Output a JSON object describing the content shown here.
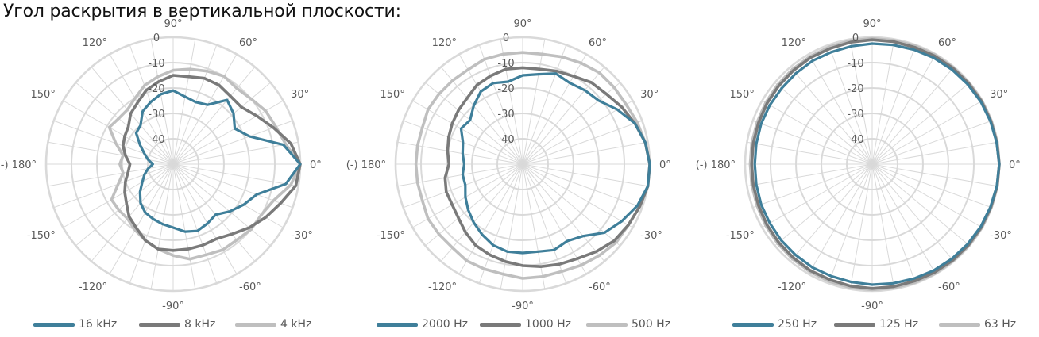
{
  "heading": "Угол раскрытия в вертикальной плоскости:",
  "colors": {
    "grid": "#d9d9d9",
    "text": "#595959"
  },
  "chart_data": [
    {
      "type": "polar",
      "angle_labels": [
        {
          "deg": 0,
          "label": "0°"
        },
        {
          "deg": 30,
          "label": "30°"
        },
        {
          "deg": 60,
          "label": "60°"
        },
        {
          "deg": 90,
          "label": "90°"
        },
        {
          "deg": 120,
          "label": "120°"
        },
        {
          "deg": 150,
          "label": "150°"
        },
        {
          "deg": 180,
          "label": "(-) 180°"
        },
        {
          "deg": 210,
          "label": "-150°"
        },
        {
          "deg": 240,
          "label": "-120°"
        },
        {
          "deg": 270,
          "label": "-90°"
        },
        {
          "deg": 300,
          "label": "-60°"
        },
        {
          "deg": 330,
          "label": "-30°"
        }
      ],
      "radial_ticks": [
        "0",
        "-10",
        "-20",
        "-30",
        "-40"
      ],
      "rlim": [
        -50,
        0
      ],
      "angle_step": 10,
      "series": [
        {
          "name": "16 kHz",
          "color": "#3f7f9a",
          "width": 3.2,
          "angles": [
            0,
            10,
            20,
            30,
            40,
            50,
            60,
            70,
            80,
            90,
            100,
            110,
            120,
            130,
            140,
            150,
            160,
            170,
            180,
            190,
            200,
            210,
            220,
            230,
            240,
            250,
            260,
            270,
            280,
            290,
            300,
            310,
            320,
            330,
            340,
            350
          ],
          "values": [
            0,
            -6,
            -18,
            -22,
            -19,
            -17,
            -23,
            -24,
            -23,
            -21,
            -22,
            -24,
            -26,
            -30,
            -31,
            -35,
            -38,
            -40,
            -42,
            -40,
            -38,
            -36,
            -33,
            -30,
            -28,
            -27,
            -26,
            -25,
            -23,
            -22,
            -23,
            -24,
            -21,
            -18,
            -15,
            -5
          ]
        },
        {
          "name": "8 kHz",
          "color": "#7a7a7a",
          "width": 3.6,
          "angles": [
            0,
            10,
            20,
            30,
            40,
            50,
            60,
            70,
            80,
            90,
            100,
            110,
            120,
            130,
            140,
            150,
            160,
            170,
            180,
            190,
            200,
            210,
            220,
            230,
            240,
            250,
            260,
            270,
            280,
            290,
            300,
            310,
            320,
            330,
            340,
            350
          ],
          "values": [
            0,
            -3,
            -8,
            -12,
            -15,
            -15,
            -14,
            -14,
            -15,
            -15,
            -17,
            -19,
            -22,
            -24,
            -27,
            -28,
            -29,
            -31,
            -33,
            -32,
            -30,
            -28,
            -26,
            -23,
            -21,
            -18,
            -16,
            -16,
            -16,
            -16,
            -16,
            -14,
            -11,
            -8,
            -5,
            -1
          ]
        },
        {
          "name": "4 kHz",
          "color": "#bfbfbf",
          "width": 3.6,
          "angles": [
            0,
            10,
            20,
            30,
            40,
            50,
            60,
            70,
            80,
            90,
            100,
            110,
            120,
            130,
            140,
            150,
            160,
            170,
            180,
            190,
            200,
            210,
            220,
            230,
            240,
            250,
            260,
            270,
            280,
            290,
            300,
            310,
            320,
            330,
            340,
            350
          ],
          "values": [
            0,
            -5,
            -7,
            -8,
            -10,
            -11,
            -10,
            -11,
            -12,
            -13,
            -15,
            -17,
            -20,
            -22,
            -22,
            -21,
            -26,
            -30,
            -29,
            -30,
            -27,
            -22,
            -22,
            -22,
            -20,
            -18,
            -16,
            -14,
            -12,
            -12,
            -11,
            -11,
            -10,
            -10,
            -8,
            -3
          ]
        }
      ]
    },
    {
      "type": "polar",
      "angle_labels": [
        {
          "deg": 0,
          "label": "0°"
        },
        {
          "deg": 30,
          "label": "30°"
        },
        {
          "deg": 60,
          "label": "60°"
        },
        {
          "deg": 90,
          "label": "90°"
        },
        {
          "deg": 120,
          "label": "120°"
        },
        {
          "deg": 150,
          "label": "150°"
        },
        {
          "deg": 180,
          "label": "(-) 180°"
        },
        {
          "deg": 210,
          "label": "-150°"
        },
        {
          "deg": 240,
          "label": "-120°"
        },
        {
          "deg": 270,
          "label": "-90°"
        },
        {
          "deg": 300,
          "label": "-60°"
        },
        {
          "deg": 330,
          "label": "-30°"
        }
      ],
      "radial_ticks": [
        "0",
        "-10",
        "-20",
        "-30",
        "-40"
      ],
      "rlim": [
        -50,
        0
      ],
      "angle_step": 10,
      "series": [
        {
          "name": "2000 Hz",
          "color": "#3f7f9a",
          "width": 3.2,
          "angles": [
            0,
            10,
            20,
            30,
            40,
            50,
            60,
            70,
            80,
            90,
            100,
            110,
            120,
            130,
            140,
            150,
            160,
            170,
            180,
            190,
            200,
            210,
            220,
            230,
            240,
            250,
            260,
            270,
            280,
            290,
            300,
            310,
            320,
            330,
            340,
            350
          ],
          "values": [
            0,
            -1,
            -3,
            -7,
            -11,
            -12,
            -13,
            -12,
            -14,
            -15,
            -17,
            -16,
            -17,
            -20,
            -23,
            -22,
            -25,
            -26,
            -27,
            -26,
            -26,
            -24,
            -22,
            -20,
            -18,
            -16,
            -15,
            -15,
            -15,
            -14,
            -15,
            -13,
            -8,
            -5,
            -2,
            0
          ]
        },
        {
          "name": "1000 Hz",
          "color": "#7a7a7a",
          "width": 3.6,
          "angles": [
            0,
            10,
            20,
            30,
            40,
            50,
            60,
            70,
            80,
            90,
            100,
            110,
            120,
            130,
            140,
            150,
            160,
            170,
            180,
            190,
            200,
            210,
            220,
            230,
            240,
            250,
            260,
            270,
            280,
            290,
            300,
            310,
            320,
            330,
            340,
            350
          ],
          "values": [
            0,
            -1,
            -3,
            -5,
            -7,
            -8,
            -10,
            -11,
            -12,
            -12,
            -12,
            -13,
            -14,
            -16,
            -17,
            -18,
            -19,
            -20,
            -21,
            -19,
            -18,
            -18,
            -17,
            -15,
            -13,
            -12,
            -11,
            -10,
            -9,
            -8,
            -7,
            -5,
            -3,
            -2,
            -1,
            0
          ]
        },
        {
          "name": "500 Hz",
          "color": "#bfbfbf",
          "width": 3.6,
          "angles": [
            0,
            10,
            20,
            30,
            40,
            50,
            60,
            70,
            80,
            90,
            100,
            110,
            120,
            130,
            140,
            150,
            160,
            170,
            180,
            190,
            200,
            210,
            220,
            230,
            240,
            250,
            260,
            270,
            280,
            290,
            300,
            310,
            320,
            330,
            340,
            350
          ],
          "values": [
            0,
            -1,
            -2,
            -3,
            -3,
            -3,
            -4,
            -5,
            -6,
            -6,
            -6,
            -6,
            -7,
            -7,
            -7,
            -7,
            -8,
            -8,
            -8,
            -8,
            -8,
            -7,
            -7,
            -7,
            -6,
            -6,
            -6,
            -5,
            -5,
            -5,
            -4,
            -3,
            -2,
            -2,
            -1,
            0
          ]
        }
      ]
    },
    {
      "type": "polar",
      "angle_labels": [
        {
          "deg": 0,
          "label": "0°"
        },
        {
          "deg": 30,
          "label": "30°"
        },
        {
          "deg": 60,
          "label": "60°"
        },
        {
          "deg": 90,
          "label": "90°"
        },
        {
          "deg": 120,
          "label": "120°"
        },
        {
          "deg": 150,
          "label": "150°"
        },
        {
          "deg": 180,
          "label": "(-) 180°"
        },
        {
          "deg": 210,
          "label": "-150°"
        },
        {
          "deg": 240,
          "label": "-120°"
        },
        {
          "deg": 270,
          "label": "-90°"
        },
        {
          "deg": 300,
          "label": "-60°"
        },
        {
          "deg": 330,
          "label": "-30°"
        }
      ],
      "radial_ticks": [
        "0",
        "-10",
        "-20",
        "-30",
        "-40"
      ],
      "rlim": [
        -50,
        0
      ],
      "angle_step": 10,
      "series": [
        {
          "name": "250 Hz",
          "color": "#3f7f9a",
          "width": 3.2,
          "angles": [
            0,
            10,
            20,
            30,
            40,
            50,
            60,
            70,
            80,
            90,
            100,
            110,
            120,
            130,
            140,
            150,
            160,
            170,
            180,
            190,
            200,
            210,
            220,
            230,
            240,
            250,
            260,
            270,
            280,
            290,
            300,
            310,
            320,
            330,
            340,
            350
          ],
          "values": [
            0,
            -0.3,
            -0.5,
            -0.7,
            -1,
            -1.3,
            -1.6,
            -2,
            -2.3,
            -2.5,
            -2.8,
            -3,
            -3,
            -3.3,
            -3.5,
            -3.5,
            -3.5,
            -3.7,
            -3.8,
            -3.7,
            -3.5,
            -3.5,
            -3.3,
            -3.2,
            -3,
            -3,
            -2.8,
            -2.5,
            -2.3,
            -2,
            -1.6,
            -1.3,
            -1,
            -0.7,
            -0.5,
            -0.2
          ]
        },
        {
          "name": "125 Hz",
          "color": "#7a7a7a",
          "width": 3.6,
          "angles": [
            0,
            10,
            20,
            30,
            40,
            50,
            60,
            70,
            80,
            90,
            100,
            110,
            120,
            130,
            140,
            150,
            160,
            170,
            180,
            190,
            200,
            210,
            220,
            230,
            240,
            250,
            260,
            270,
            280,
            290,
            300,
            310,
            320,
            330,
            340,
            350
          ],
          "values": [
            0,
            -0.2,
            -0.3,
            -0.4,
            -0.5,
            -0.6,
            -0.8,
            -1,
            -1,
            -1,
            -1.2,
            -1.5,
            -1.5,
            -1.8,
            -2,
            -2.2,
            -2.4,
            -2.5,
            -2.6,
            -2.5,
            -2.4,
            -2.2,
            -2,
            -1.8,
            -1.5,
            -1.5,
            -1.2,
            -1,
            -1,
            -1,
            -0.8,
            -0.6,
            -0.5,
            -0.4,
            -0.3,
            -0.1
          ]
        },
        {
          "name": "63 Hz",
          "color": "#bfbfbf",
          "width": 3.6,
          "angles": [
            0,
            10,
            20,
            30,
            40,
            50,
            60,
            70,
            80,
            90,
            100,
            110,
            120,
            130,
            140,
            150,
            160,
            170,
            180,
            190,
            200,
            210,
            220,
            230,
            240,
            250,
            260,
            270,
            280,
            290,
            300,
            310,
            320,
            330,
            340,
            350
          ],
          "values": [
            0,
            0,
            -0.1,
            -0.1,
            -0.2,
            -0.3,
            -0.3,
            -0.4,
            -0.5,
            -0.5,
            -0.6,
            -0.8,
            -1,
            -1.2,
            -1.4,
            -1.6,
            -1.8,
            -1.9,
            -2,
            -1.9,
            -1.8,
            -1.6,
            -1.4,
            -1.2,
            -1,
            -0.8,
            -0.6,
            -0.5,
            -0.5,
            -0.4,
            -0.3,
            -0.3,
            -0.2,
            -0.1,
            -0.1,
            0
          ]
        }
      ]
    }
  ]
}
